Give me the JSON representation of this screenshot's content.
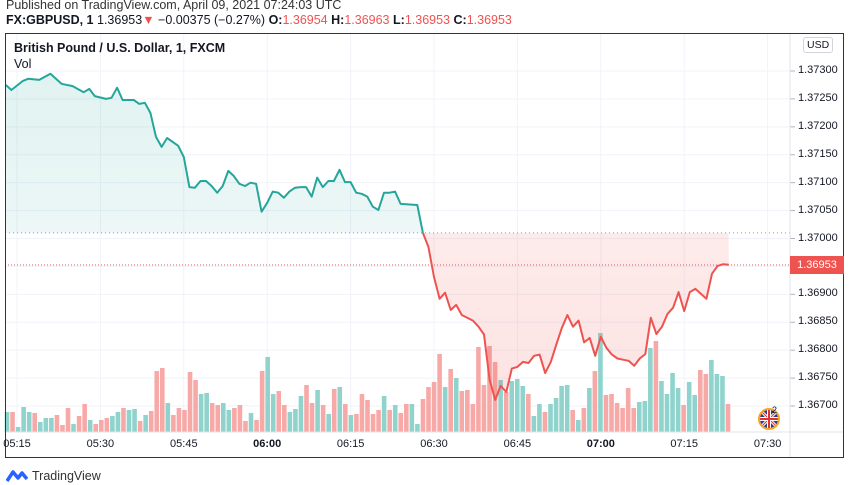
{
  "header": {
    "published": "Published on TradingView.com, April 09, 2021 07:24:03 UTC",
    "symbol": "FX:GBPUSD, 1",
    "last": "1.36953",
    "change": "−0.00375 (−0.27%)",
    "open_label": "O:",
    "open": "1.36954",
    "high_label": "H:",
    "high": "1.36963",
    "low_label": "L:",
    "low": "1.36953",
    "close_label": "C:",
    "close": "1.36953"
  },
  "legend": {
    "title": "British Pound / U.S. Dollar, 1, FXCM",
    "vol": "Vol"
  },
  "price_axis": {
    "currency": "USD",
    "last_price": "1.36953"
  },
  "events": {
    "count": "2",
    "icon": "uk-flag-icon"
  },
  "footer": {
    "brand": "TradingView"
  },
  "colors": {
    "up": "#26a69a",
    "down": "#ef5350",
    "up_volume": "#8fd3cc",
    "down_volume": "#f7a9a7",
    "last_price": "#ef5350"
  },
  "chart_data": {
    "type": "line",
    "ylim": [
      1.3665,
      1.3735
    ],
    "baseline": 1.3701,
    "grid": true,
    "y_ticks": [
      "1.37300",
      "1.37250",
      "1.37200",
      "1.37150",
      "1.37100",
      "1.37050",
      "1.37000",
      "1.36950",
      "1.36900",
      "1.36850",
      "1.36800",
      "1.36750",
      "1.36700"
    ],
    "x_ticks": [
      "05:15",
      "05:30",
      "05:45",
      "06:00",
      "06:15",
      "06:30",
      "06:45",
      "07:00",
      "07:15",
      "07:30"
    ],
    "price": [
      [
        "05:13",
        1.37275
      ],
      [
        "05:14",
        1.37266
      ],
      [
        "05:16",
        1.37282
      ],
      [
        "05:17",
        1.37286
      ],
      [
        "05:19",
        1.37284
      ],
      [
        "05:21",
        1.37295
      ],
      [
        "05:23",
        1.37277
      ],
      [
        "05:25",
        1.37273
      ],
      [
        "05:27",
        1.37262
      ],
      [
        "05:28",
        1.37268
      ],
      [
        "05:29",
        1.37255
      ],
      [
        "05:31",
        1.3725
      ],
      [
        "05:32",
        1.37252
      ],
      [
        "05:33",
        1.3727
      ],
      [
        "05:34",
        1.37248
      ],
      [
        "05:36",
        1.37248
      ],
      [
        "05:37",
        1.37241
      ],
      [
        "05:38",
        1.37243
      ],
      [
        "05:39",
        1.37225
      ],
      [
        "05:40",
        1.37182
      ],
      [
        "05:41",
        1.37164
      ],
      [
        "05:42",
        1.3718
      ],
      [
        "05:44",
        1.37166
      ],
      [
        "05:45",
        1.37146
      ],
      [
        "05:46",
        1.37092
      ],
      [
        "05:47",
        1.37091
      ],
      [
        "05:48",
        1.37103
      ],
      [
        "05:49",
        1.37103
      ],
      [
        "05:50",
        1.37094
      ],
      [
        "05:51",
        1.37082
      ],
      [
        "05:52",
        1.37094
      ],
      [
        "05:53",
        1.37121
      ],
      [
        "05:54",
        1.37112
      ],
      [
        "05:55",
        1.37098
      ],
      [
        "05:56",
        1.37094
      ],
      [
        "05:57",
        1.371
      ],
      [
        "05:58",
        1.37098
      ],
      [
        "05:59",
        1.37048
      ],
      [
        "06:00",
        1.37064
      ],
      [
        "06:01",
        1.37084
      ],
      [
        "06:02",
        1.37082
      ],
      [
        "06:03",
        1.37073
      ],
      [
        "06:04",
        1.37084
      ],
      [
        "06:05",
        1.37091
      ],
      [
        "06:06",
        1.37092
      ],
      [
        "06:07",
        1.37092
      ],
      [
        "06:08",
        1.37075
      ],
      [
        "06:09",
        1.37109
      ],
      [
        "06:10",
        1.37092
      ],
      [
        "06:11",
        1.37103
      ],
      [
        "06:12",
        1.37103
      ],
      [
        "06:13",
        1.37123
      ],
      [
        "06:14",
        1.37101
      ],
      [
        "06:15",
        1.37101
      ],
      [
        "06:16",
        1.37082
      ],
      [
        "06:17",
        1.3708
      ],
      [
        "06:18",
        1.37075
      ],
      [
        "06:19",
        1.37057
      ],
      [
        "06:20",
        1.37051
      ],
      [
        "06:21",
        1.37082
      ],
      [
        "06:22",
        1.37082
      ],
      [
        "06:23",
        1.37084
      ],
      [
        "06:24",
        1.37062
      ],
      [
        "06:27",
        1.3706
      ],
      [
        "06:28",
        1.3701
      ],
      [
        "06:29",
        1.36985
      ],
      [
        "06:30",
        1.36931
      ],
      [
        "06:31",
        1.36892
      ],
      [
        "06:32",
        1.36903
      ],
      [
        "06:33",
        1.36872
      ],
      [
        "06:34",
        1.36881
      ],
      [
        "06:35",
        1.36863
      ],
      [
        "06:37",
        1.36853
      ],
      [
        "06:38",
        1.36842
      ],
      [
        "06:39",
        1.36828
      ],
      [
        "06:40",
        1.36747
      ],
      [
        "06:41",
        1.36711
      ],
      [
        "06:42",
        1.36736
      ],
      [
        "06:43",
        1.36725
      ],
      [
        "06:44",
        1.36767
      ],
      [
        "06:45",
        1.3677
      ],
      [
        "06:46",
        1.36779
      ],
      [
        "06:47",
        1.36777
      ],
      [
        "06:48",
        1.3679
      ],
      [
        "06:49",
        1.36792
      ],
      [
        "06:50",
        1.36759
      ],
      [
        "06:51",
        1.36779
      ],
      [
        "06:52",
        1.3681
      ],
      [
        "06:53",
        1.3684
      ],
      [
        "06:54",
        1.36863
      ],
      [
        "06:55",
        1.36842
      ],
      [
        "06:56",
        1.36853
      ],
      [
        "06:57",
        1.36814
      ],
      [
        "06:58",
        1.36822
      ],
      [
        "06:59",
        1.3679
      ],
      [
        "07:00",
        1.36824
      ],
      [
        "07:01",
        1.36804
      ],
      [
        "07:02",
        1.36792
      ],
      [
        "07:03",
        1.36785
      ],
      [
        "07:04",
        1.36783
      ],
      [
        "07:05",
        1.36781
      ],
      [
        "07:06",
        1.36772
      ],
      [
        "07:07",
        1.36785
      ],
      [
        "07:08",
        1.36793
      ],
      [
        "07:09",
        1.36858
      ],
      [
        "07:10",
        1.36829
      ],
      [
        "07:11",
        1.36842
      ],
      [
        "07:12",
        1.36865
      ],
      [
        "07:13",
        1.36876
      ],
      [
        "07:14",
        1.36904
      ],
      [
        "07:15",
        1.3687
      ],
      [
        "07:16",
        1.36904
      ],
      [
        "07:17",
        1.3691
      ],
      [
        "07:19",
        1.36892
      ],
      [
        "07:20",
        1.36937
      ],
      [
        "07:21",
        1.36951
      ],
      [
        "07:22",
        1.36954
      ],
      [
        "07:23",
        1.36953
      ]
    ],
    "volume": [
      [
        20,
        "up"
      ],
      [
        20,
        "down"
      ],
      [
        5,
        "up"
      ],
      [
        25,
        "up"
      ],
      [
        20,
        "up"
      ],
      [
        19,
        "down"
      ],
      [
        10,
        "up"
      ],
      [
        14,
        "up"
      ],
      [
        14,
        "up"
      ],
      [
        17,
        "down"
      ],
      [
        7,
        "down"
      ],
      [
        24,
        "down"
      ],
      [
        8,
        "up"
      ],
      [
        16,
        "down"
      ],
      [
        28,
        "down"
      ],
      [
        12,
        "up"
      ],
      [
        8,
        "down"
      ],
      [
        12,
        "down"
      ],
      [
        14,
        "down"
      ],
      [
        16,
        "up"
      ],
      [
        20,
        "up"
      ],
      [
        24,
        "down"
      ],
      [
        22,
        "up"
      ],
      [
        23,
        "up"
      ],
      [
        11,
        "down"
      ],
      [
        17,
        "up"
      ],
      [
        21,
        "down"
      ],
      [
        61,
        "down"
      ],
      [
        64,
        "down"
      ],
      [
        29,
        "up"
      ],
      [
        17,
        "down"
      ],
      [
        24,
        "down"
      ],
      [
        22,
        "down"
      ],
      [
        60,
        "down"
      ],
      [
        52,
        "down"
      ],
      [
        38,
        "up"
      ],
      [
        39,
        "up"
      ],
      [
        29,
        "down"
      ],
      [
        27,
        "down"
      ],
      [
        29,
        "up"
      ],
      [
        22,
        "up"
      ],
      [
        24,
        "down"
      ],
      [
        27,
        "down"
      ],
      [
        11,
        "down"
      ],
      [
        19,
        "up"
      ],
      [
        12,
        "down"
      ],
      [
        61,
        "down"
      ],
      [
        75,
        "up"
      ],
      [
        38,
        "up"
      ],
      [
        41,
        "down"
      ],
      [
        27,
        "down"
      ],
      [
        20,
        "up"
      ],
      [
        23,
        "up"
      ],
      [
        36,
        "up"
      ],
      [
        47,
        "down"
      ],
      [
        29,
        "down"
      ],
      [
        42,
        "up"
      ],
      [
        27,
        "down"
      ],
      [
        18,
        "up"
      ],
      [
        43,
        "down"
      ],
      [
        45,
        "up"
      ],
      [
        28,
        "down"
      ],
      [
        17,
        "up"
      ],
      [
        18,
        "down"
      ],
      [
        38,
        "down"
      ],
      [
        32,
        "down"
      ],
      [
        18,
        "down"
      ],
      [
        22,
        "down"
      ],
      [
        36,
        "up"
      ],
      [
        22,
        "down"
      ],
      [
        27,
        "up"
      ],
      [
        19,
        "down"
      ],
      [
        28,
        "down"
      ],
      [
        28,
        "up"
      ],
      [
        8,
        "up"
      ],
      [
        33,
        "down"
      ],
      [
        45,
        "down"
      ],
      [
        50,
        "down"
      ],
      [
        78,
        "down"
      ],
      [
        45,
        "up"
      ],
      [
        63,
        "down"
      ],
      [
        54,
        "up"
      ],
      [
        41,
        "down"
      ],
      [
        42,
        "down"
      ],
      [
        28,
        "down"
      ],
      [
        85,
        "down"
      ],
      [
        47,
        "down"
      ],
      [
        86,
        "down"
      ],
      [
        70,
        "down"
      ],
      [
        52,
        "up"
      ],
      [
        40,
        "down"
      ],
      [
        51,
        "up"
      ],
      [
        53,
        "up"
      ],
      [
        46,
        "up"
      ],
      [
        38,
        "down"
      ],
      [
        16,
        "up"
      ],
      [
        28,
        "up"
      ],
      [
        20,
        "down"
      ],
      [
        28,
        "up"
      ],
      [
        34,
        "up"
      ],
      [
        46,
        "up"
      ],
      [
        47,
        "up"
      ],
      [
        22,
        "down"
      ],
      [
        12,
        "up"
      ],
      [
        24,
        "down"
      ],
      [
        44,
        "up"
      ],
      [
        61,
        "down"
      ],
      [
        99,
        "up"
      ],
      [
        37,
        "down"
      ],
      [
        38,
        "down"
      ],
      [
        29,
        "down"
      ],
      [
        24,
        "down"
      ],
      [
        44,
        "down"
      ],
      [
        24,
        "down"
      ],
      [
        30,
        "up"
      ],
      [
        31,
        "up"
      ],
      [
        84,
        "up"
      ],
      [
        91,
        "down"
      ],
      [
        51,
        "up"
      ],
      [
        38,
        "up"
      ],
      [
        59,
        "up"
      ],
      [
        44,
        "up"
      ],
      [
        27,
        "down"
      ],
      [
        50,
        "up"
      ],
      [
        37,
        "up"
      ],
      [
        62,
        "down"
      ],
      [
        58,
        "down"
      ],
      [
        72,
        "up"
      ],
      [
        58,
        "up"
      ],
      [
        56,
        "up"
      ],
      [
        28,
        "down"
      ]
    ]
  }
}
